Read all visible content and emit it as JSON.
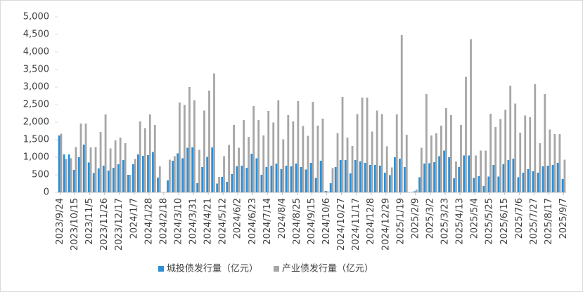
{
  "chart_data": {
    "type": "bar",
    "categories": [
      "2023/9/24",
      null,
      null,
      "2023/10/15",
      null,
      null,
      "2023/11/5",
      null,
      null,
      "2023/11/26",
      null,
      null,
      "2023/12/17",
      null,
      null,
      "2024/1/7",
      null,
      null,
      "2024/1/28",
      null,
      null,
      "2024/2/18",
      null,
      null,
      "2024/3/10",
      null,
      null,
      "2024/3/31",
      null,
      null,
      "2024/4/21",
      null,
      null,
      "2024/5/12",
      null,
      null,
      "2024/6/2",
      null,
      null,
      "2024/6/23",
      null,
      null,
      "2024/7/14",
      null,
      null,
      "2024/8/4",
      null,
      null,
      "2024/8/25",
      null,
      null,
      "2024/9/15",
      null,
      null,
      "2024/10/6",
      null,
      null,
      "2024/10/27",
      null,
      null,
      "2024/11/17",
      null,
      null,
      "2024/12/8",
      null,
      null,
      "2024/12/29",
      null,
      null,
      "2025/1/19",
      null,
      null,
      "2025/2/9",
      null,
      null,
      "2025/3/2",
      null,
      null,
      "2025/3/23",
      null,
      null,
      "2025/4/13",
      null,
      null,
      "2025/5/4",
      null,
      null,
      "2025/5/25",
      null,
      null,
      "2025/6/15",
      null,
      null,
      "2025/7/6",
      null,
      null,
      "2025/7/27",
      null,
      null,
      "2025/8/17",
      null,
      null,
      "2025/9/7"
    ],
    "series": [
      {
        "name": "城投债发行量（亿元）",
        "color": "#2e8fd6",
        "values": [
          1620,
          1080,
          1080,
          640,
          1000,
          1360,
          850,
          550,
          680,
          760,
          620,
          700,
          800,
          920,
          500,
          800,
          1080,
          1040,
          1060,
          1150,
          420,
          0,
          340,
          900,
          1110,
          970,
          1270,
          1280,
          260,
          720,
          1010,
          1280,
          250,
          440,
          300,
          520,
          740,
          760,
          700,
          1100,
          970,
          500,
          720,
          760,
          820,
          660,
          760,
          740,
          820,
          720,
          650,
          840,
          410,
          900,
          40,
          260,
          720,
          920,
          920,
          540,
          920,
          880,
          840,
          780,
          780,
          760,
          560,
          490,
          1000,
          960,
          720,
          0,
          30,
          430,
          820,
          830,
          860,
          1030,
          1190,
          1000,
          400,
          720,
          1050,
          1050,
          410,
          460,
          180,
          450,
          780,
          450,
          800,
          920,
          960,
          430,
          560,
          660,
          600,
          560,
          740,
          760,
          780,
          840,
          380
        ]
      },
      {
        "name": "产业债发行量（亿元）",
        "color": "#a6a6a6",
        "values": [
          1670,
          950,
          970,
          1290,
          1960,
          1960,
          1280,
          1290,
          1720,
          2220,
          1250,
          1480,
          1560,
          1400,
          500,
          950,
          2020,
          1830,
          2220,
          1920,
          740,
          0,
          930,
          1030,
          2560,
          2490,
          3000,
          2620,
          1210,
          2330,
          2900,
          3390,
          440,
          1030,
          1350,
          1920,
          1270,
          2060,
          1580,
          2460,
          2060,
          1620,
          2320,
          1990,
          2620,
          1510,
          2200,
          2020,
          2600,
          1890,
          1610,
          2580,
          1900,
          2100,
          30,
          690,
          1690,
          2720,
          1560,
          1320,
          2230,
          2700,
          2700,
          1730,
          2330,
          2230,
          1310,
          710,
          2220,
          4480,
          1640,
          0,
          80,
          1270,
          2800,
          1620,
          1680,
          1900,
          2400,
          2200,
          880,
          1920,
          3290,
          4360,
          1050,
          1190,
          1190,
          2240,
          1860,
          2090,
          2350,
          3040,
          2530,
          1700,
          2190,
          2140,
          3080,
          1400,
          2800,
          1790,
          1660,
          1660,
          930
        ]
      }
    ],
    "ylim": [
      0,
      5000
    ],
    "yticks": [
      0,
      500,
      {
        "value": 1000,
        "label": "1,000"
      },
      {
        "value": 1500,
        "label": "1,500"
      },
      {
        "value": 2000,
        "label": "2,000"
      },
      {
        "value": 2500,
        "label": "2,500"
      },
      {
        "value": 3000,
        "label": "3,000"
      },
      {
        "value": 3500,
        "label": "3,500"
      },
      {
        "value": 4000,
        "label": "4,000"
      },
      {
        "value": 4500,
        "label": "4,500"
      },
      {
        "value": 5000,
        "label": "5,000"
      }
    ],
    "legend": "bottom"
  }
}
